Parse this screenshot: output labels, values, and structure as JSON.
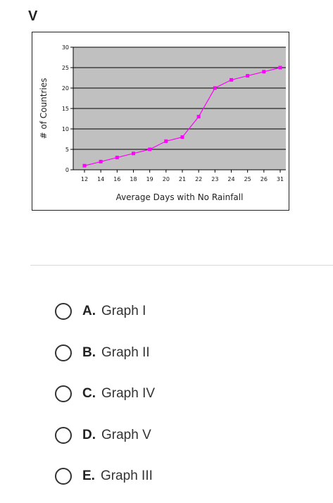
{
  "question": {
    "heading": "V"
  },
  "chart_data": {
    "type": "line",
    "title": "",
    "xlabel": "Average Days with No Rainfall",
    "ylabel": "# of Countries",
    "categories": [
      "12",
      "14",
      "16",
      "18",
      "19",
      "20",
      "21",
      "22",
      "23",
      "24",
      "25",
      "26",
      "31"
    ],
    "y_ticks": [
      "0",
      "5",
      "10",
      "15",
      "20",
      "25",
      "30"
    ],
    "ylim": [
      0,
      30
    ],
    "grid": true,
    "legend": "none",
    "series": [
      {
        "values": [
          1,
          2,
          3,
          4,
          5,
          7,
          8,
          13,
          20,
          22,
          23,
          24,
          25
        ]
      }
    ],
    "colors": {
      "line": "#ff00ff",
      "plot_bg": "#c0c0c0",
      "grid": "#000000"
    }
  },
  "choices": [
    {
      "letter": "A.",
      "text": "Graph I"
    },
    {
      "letter": "B.",
      "text": "Graph II"
    },
    {
      "letter": "C.",
      "text": "Graph IV"
    },
    {
      "letter": "D.",
      "text": "Graph V"
    },
    {
      "letter": "E.",
      "text": "Graph III"
    }
  ]
}
